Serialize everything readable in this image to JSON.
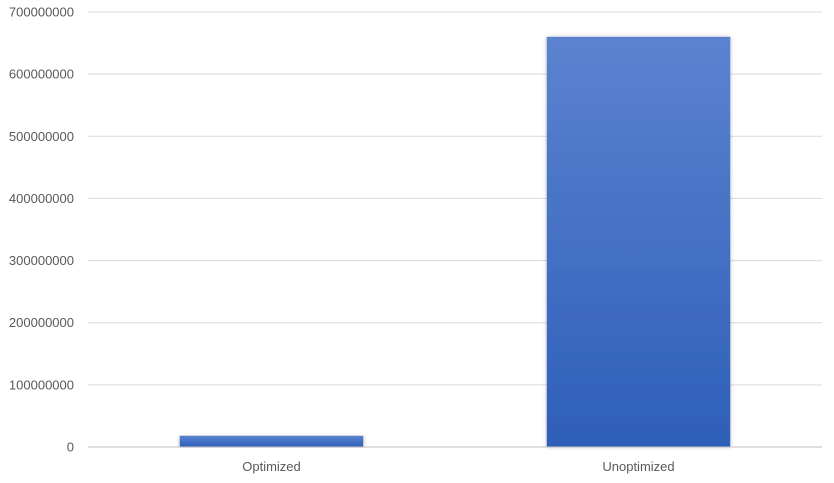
{
  "chart_data": {
    "type": "bar",
    "title": "",
    "xlabel": "",
    "ylabel": "",
    "categories": [
      "Optimized",
      "Unoptimized"
    ],
    "values": [
      18000000,
      660000000
    ],
    "ylim": [
      0,
      700000000
    ],
    "yticks": [
      0,
      100000000,
      200000000,
      300000000,
      400000000,
      500000000,
      600000000,
      700000000
    ],
    "ytick_labels": [
      "0",
      "100000000",
      "200000000",
      "300000000",
      "400000000",
      "500000000",
      "600000000",
      "700000000"
    ],
    "grid": true,
    "legend": "none",
    "bar_color_top": "#5b83d0",
    "bar_color_bottom": "#2e5fb8"
  }
}
